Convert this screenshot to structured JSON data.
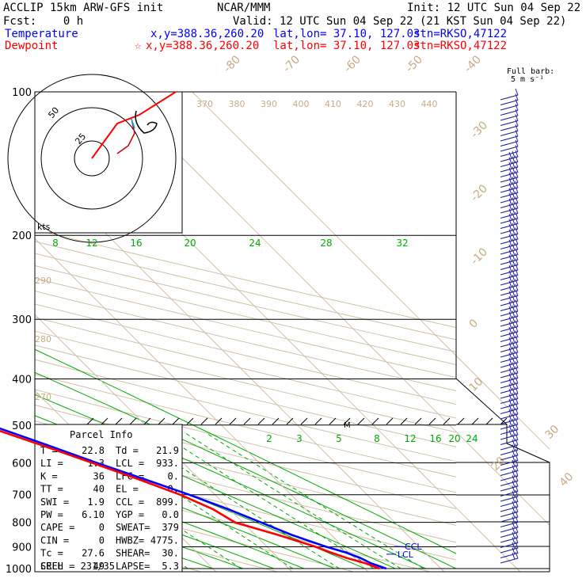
{
  "header": {
    "model": "ACCLIP 15km ARW-GFS init",
    "org": "NCAR/MMM",
    "init": "Init: 12 UTC Sun 04 Sep 22",
    "fcst": "Fcst:    0 h",
    "valid": "Valid: 12 UTC Sun 04 Sep 22 (21 KST Sun 04 Sep 22)"
  },
  "legend": {
    "temperature": {
      "label": "Temperature",
      "xy": "x,y=388.36,260.20",
      "latlon": "lat,lon= 37.10, 127.03",
      "stn": "stn=RKSO,47122",
      "color": "#0000ff"
    },
    "dewpoint": {
      "label": "Dewpoint",
      "xy": "x,y=388.36,260.20",
      "latlon": "lat,lon= 37.10, 127.03",
      "stn": "stn=RKSO,47122",
      "color": "#ff0000",
      "marker": "☆"
    }
  },
  "barb_label": {
    "line1": "Full barb:",
    "line2": "5 m s⁻¹"
  },
  "hodograph": {
    "ring_labels": [
      "50",
      "25"
    ],
    "units": "kts"
  },
  "parcel_info": {
    "title": "Parcel Info",
    "rows": [
      {
        "k1": "T   =",
        "v1": "22.8",
        "k2": "Td  =",
        "v2": "21.9"
      },
      {
        "k1": "LI  =",
        "v1": "1.3",
        "k2": "LCL =",
        "v2": "933."
      },
      {
        "k1": "K   =",
        "v1": "36",
        "k2": "LFC =",
        "v2": "0."
      },
      {
        "k1": "TT  =",
        "v1": "40",
        "k2": "EL  =",
        "v2": "0."
      },
      {
        "k1": "SWI =",
        "v1": "1.9",
        "k2": "CCL =",
        "v2": "899."
      },
      {
        "k1": "PW  =",
        "v1": "6.10",
        "k2": "YGP =",
        "v2": "0.0"
      },
      {
        "k1": "CAPE =",
        "v1": "0",
        "k2": "SWEAT=",
        "v2": "379"
      },
      {
        "k1": "CIN  =",
        "v1": "0",
        "k2": "HWBZ=",
        "v2": "4775."
      },
      {
        "k1": "Tc  =",
        "v1": "27.6",
        "k2": "SHEAR=",
        "v2": "30."
      },
      {
        "k1": "SREH =",
        "v1": "49",
        "k2": "LAPSE=",
        "v2": "5.3"
      }
    ],
    "cell": "CELL = 231/35"
  },
  "chart_data": {
    "type": "line",
    "title": "",
    "ylabel": "",
    "xlabel": "",
    "y_scale": "log-pressure",
    "ylim": [
      1000,
      100
    ],
    "pressure_levels": [
      100,
      200,
      300,
      400,
      500,
      600,
      700,
      800,
      900,
      1000
    ],
    "theta_labels": [
      "370",
      "380",
      "390",
      "400",
      "410",
      "420",
      "430",
      "440"
    ],
    "theta_labels_left": [
      "290",
      "280",
      "270"
    ],
    "isotherm_labels": [
      "-80",
      "-70",
      "-60",
      "-50",
      "-40",
      "-30",
      "-20",
      "-10",
      "0",
      "10",
      "20",
      "30",
      "40"
    ],
    "theta_e_labels": [
      "8",
      "12",
      "16",
      "20",
      "24",
      "28",
      "32"
    ],
    "mixing_ratio_labels": [
      "2",
      "3",
      "5",
      "8",
      "12",
      "16",
      "20",
      "24"
    ],
    "markers": {
      "lcl": "LCL",
      "ccl": "CCL",
      "m": "M"
    },
    "series": [
      {
        "id": "temperature",
        "color": "#0000ff",
        "points": [
          [
            1000,
            22.8
          ],
          [
            975,
            21.5
          ],
          [
            950,
            20.8
          ],
          [
            925,
            19.6
          ],
          [
            900,
            17.8
          ],
          [
            850,
            14.8
          ],
          [
            800,
            12.4
          ],
          [
            750,
            9.8
          ],
          [
            700,
            6.6
          ],
          [
            650,
            2.8
          ],
          [
            600,
            -1.4
          ],
          [
            550,
            -5.6
          ],
          [
            500,
            -10.4
          ],
          [
            450,
            -15.6
          ],
          [
            400,
            -21.6
          ],
          [
            350,
            -28.8
          ],
          [
            300,
            -37.4
          ],
          [
            250,
            -47.2
          ],
          [
            225,
            -52.0
          ],
          [
            200,
            -56.6
          ],
          [
            175,
            -60.8
          ],
          [
            150,
            -63.8
          ],
          [
            125,
            -65.0
          ],
          [
            110,
            -64.2
          ],
          [
            100,
            -62.8
          ]
        ]
      },
      {
        "id": "dewpoint",
        "color": "#ff0000",
        "points": [
          [
            1000,
            21.9
          ],
          [
            975,
            20.8
          ],
          [
            950,
            19.0
          ],
          [
            925,
            17.6
          ],
          [
            900,
            16.4
          ],
          [
            850,
            13.0
          ],
          [
            800,
            9.0
          ],
          [
            750,
            7.8
          ],
          [
            700,
            5.4
          ],
          [
            650,
            2.0
          ],
          [
            600,
            -2.0
          ],
          [
            550,
            -6.4
          ],
          [
            500,
            -11.4
          ],
          [
            450,
            -17.0
          ],
          [
            400,
            -24.0
          ],
          [
            370,
            -33.0
          ],
          [
            350,
            -41.0
          ],
          [
            300,
            -49.0
          ],
          [
            250,
            -57.0
          ],
          [
            200,
            -68.0
          ],
          [
            175,
            -73.0
          ],
          [
            150,
            -77.5
          ]
        ]
      }
    ]
  }
}
